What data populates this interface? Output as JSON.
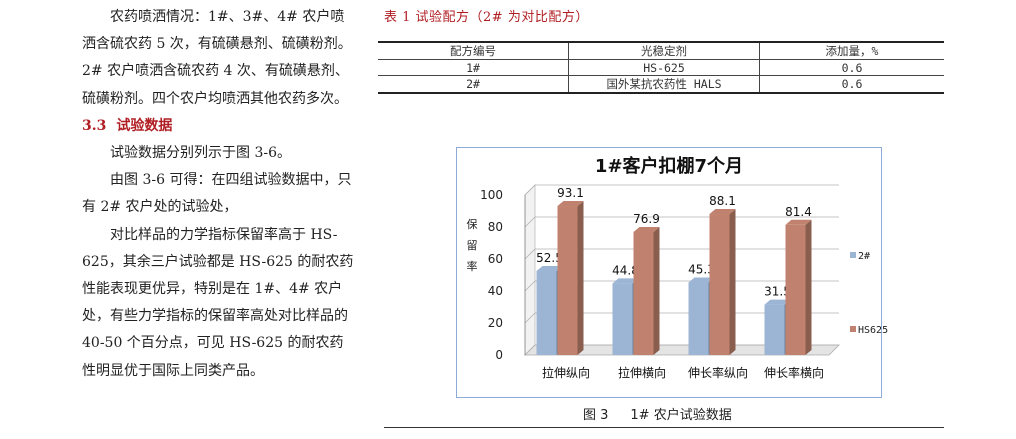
{
  "body_text": {
    "para1": "农药喷洒情况：1#、3#、4# 农户喷洒含硫农药 5 次，有硫磺悬剂、硫磺粉剂。2# 农户喷洒含硫农药 4 次、有硫磺悬剂、硫磺粉剂。四个农户均喷洒其他农药多次。",
    "section_number": "3.3",
    "section_title": "试验数据",
    "para2": "试验数据分别列示于图 3-6。",
    "para3": "由图 3-6 可得：在四组试验数据中，只有 2# 农户处的试验处，",
    "para4": "对比样品的力学指标保留率高于 HS-625，其余三户试验都是 HS-625 的耐农药性能表现更优异，特别是在 1#、4# 农户处，有些力学指标的保留率高处对比样品的 40-50 个百分点，可见 HS-625 的耐农药性明显优于国际上同类产品。"
  },
  "table": {
    "title": "表 1   试验配方（2# 为对比配方）",
    "headers": [
      "配方编号",
      "光稳定剂",
      "添加量，%"
    ],
    "rows": [
      [
        "1#",
        "HS-625",
        "0.6"
      ],
      [
        "2#",
        "国外某抗农药性 HALS",
        "0.6"
      ]
    ]
  },
  "figure": {
    "caption_number": "图 3",
    "caption_text": "1# 农户试验数据"
  },
  "chart_data": {
    "type": "bar",
    "title": "1#客户扣棚7个月",
    "ylabel": "保留率",
    "xlabel": "",
    "ylim": [
      0,
      100
    ],
    "yticks": [
      0,
      20,
      40,
      60,
      80,
      100
    ],
    "categories": [
      "拉伸纵向",
      "拉伸横向",
      "伸长率纵向",
      "伸长率横向"
    ],
    "series": [
      {
        "name": "2#",
        "values": [
          52.5,
          44.8,
          45.3,
          31.5
        ],
        "color": "#9db5d5"
      },
      {
        "name": "HS625",
        "values": [
          93.1,
          76.9,
          88.1,
          81.4
        ],
        "color": "#c0826e"
      }
    ],
    "legend_position": "right",
    "style": "3d-clustered-bar"
  }
}
